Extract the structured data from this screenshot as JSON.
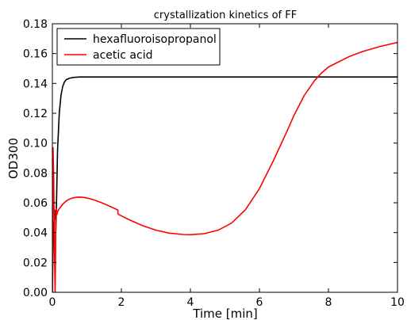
{
  "chart_data": {
    "type": "line",
    "title": "crystallization kinetics of FF",
    "xlabel": "Time [min]",
    "ylabel": "OD300",
    "xlim": [
      0,
      10
    ],
    "ylim": [
      0,
      0.18
    ],
    "xticks": [
      0,
      2,
      4,
      6,
      8,
      10
    ],
    "xtick_labels": [
      "0",
      "2",
      "4",
      "6",
      "8",
      "10"
    ],
    "yticks": [
      0,
      0.02,
      0.04,
      0.06,
      0.08,
      0.1,
      0.12,
      0.14,
      0.16,
      0.18
    ],
    "ytick_labels": [
      "0.00",
      "0.02",
      "0.04",
      "0.06",
      "0.08",
      "0.10",
      "0.12",
      "0.14",
      "0.16",
      "0.18"
    ],
    "grid": false,
    "legend_position": "top-left",
    "series": [
      {
        "name": "hexafluoroisopropanol",
        "color": "#000000",
        "x": [
          0.0,
          0.03,
          0.06,
          0.09,
          0.1,
          0.12,
          0.15,
          0.2,
          0.25,
          0.3,
          0.35,
          0.4,
          0.5,
          0.6,
          0.7,
          0.8,
          1.0,
          1.5,
          2.0,
          3.0,
          4.0,
          5.0,
          6.0,
          7.0,
          8.0,
          9.0,
          10.0
        ],
        "y": [
          0.0,
          0.045,
          0.05,
          0.055,
          0.041,
          0.06,
          0.095,
          0.12,
          0.132,
          0.138,
          0.141,
          0.1425,
          0.1435,
          0.144,
          0.1442,
          0.1443,
          0.1443,
          0.1443,
          0.1443,
          0.1443,
          0.1443,
          0.1443,
          0.1443,
          0.1443,
          0.1443,
          0.1443,
          0.1443
        ]
      },
      {
        "name": "acetic acid",
        "color": "#ff0000",
        "x": [
          0.0,
          0.02,
          0.04,
          0.06,
          0.08,
          0.09,
          0.1,
          0.11,
          0.13,
          0.15,
          0.2,
          0.3,
          0.4,
          0.5,
          0.6,
          0.7,
          0.8,
          0.9,
          1.0,
          1.2,
          1.4,
          1.6,
          1.8,
          1.9,
          1.9,
          2.2,
          2.6,
          3.0,
          3.4,
          3.8,
          4.0,
          4.4,
          4.8,
          5.2,
          5.6,
          6.0,
          6.4,
          6.8,
          7.0,
          7.3,
          7.6,
          7.8,
          8.0,
          8.3,
          8.6,
          9.0,
          9.5,
          10.0
        ],
        "y": [
          0.0,
          0.097,
          0.075,
          0.03,
          0.0,
          0.02,
          0.05,
          0.056,
          0.052,
          0.054,
          0.056,
          0.059,
          0.0612,
          0.0625,
          0.0633,
          0.0637,
          0.0638,
          0.0636,
          0.0632,
          0.062,
          0.0603,
          0.0583,
          0.0562,
          0.0551,
          0.0524,
          0.0489,
          0.0448,
          0.0416,
          0.0396,
          0.0387,
          0.0386,
          0.0393,
          0.0416,
          0.0465,
          0.0555,
          0.0695,
          0.088,
          0.108,
          0.1185,
          0.132,
          0.142,
          0.147,
          0.151,
          0.1545,
          0.158,
          0.1615,
          0.1648,
          0.1675
        ]
      }
    ]
  }
}
